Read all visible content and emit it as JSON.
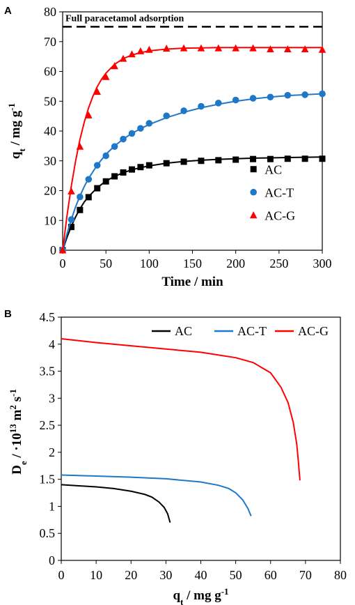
{
  "chart_data": [
    {
      "panel": "A",
      "type": "scatter",
      "xlabel": "Time / min",
      "ylabel": {
        "main": "q",
        "sub": "t",
        "rest": " / mg g",
        "sup": "-1"
      },
      "xlim": [
        0,
        300
      ],
      "ylim": [
        0,
        80
      ],
      "xticks": [
        "0",
        "50",
        "100",
        "150",
        "200",
        "250",
        "300"
      ],
      "yticks": [
        "0",
        "10",
        "20",
        "30",
        "40",
        "50",
        "60",
        "70",
        "80"
      ],
      "grid": false,
      "legend_position": "bottom-right",
      "reference_line": {
        "y": 75,
        "label": "Full paracetamol adsorption",
        "style": "dashed"
      },
      "series": [
        {
          "name": "AC",
          "color": "#000000",
          "marker": "square",
          "x": [
            0,
            10,
            20,
            30,
            40,
            50,
            60,
            70,
            80,
            90,
            100,
            120,
            140,
            160,
            180,
            200,
            220,
            240,
            260,
            280,
            300
          ],
          "y": [
            0,
            7.8,
            13.5,
            17.8,
            20.8,
            23.1,
            24.8,
            26.1,
            27.1,
            27.9,
            28.5,
            29.2,
            29.7,
            30.0,
            30.2,
            30.4,
            30.6,
            30.6,
            30.7,
            30.7,
            30.7
          ],
          "fit_x": [
            0,
            5,
            10,
            15,
            20,
            25,
            30,
            40,
            50,
            60,
            70,
            80,
            90,
            100,
            120,
            140,
            160,
            180,
            200,
            220,
            240,
            260,
            280,
            300
          ],
          "fit_y": [
            0,
            4.3,
            8.0,
            11.2,
            13.9,
            16.2,
            18.0,
            21.0,
            23.2,
            24.8,
            26.0,
            27.0,
            27.7,
            28.3,
            29.2,
            29.8,
            30.2,
            30.5,
            30.7,
            30.9,
            31.0,
            31.1,
            31.2,
            31.3
          ]
        },
        {
          "name": "AC-T",
          "color": "#1f77c8",
          "marker": "circle",
          "x": [
            0,
            10,
            20,
            30,
            40,
            50,
            60,
            70,
            80,
            90,
            100,
            120,
            140,
            160,
            180,
            200,
            220,
            240,
            260,
            280,
            300
          ],
          "y": [
            0,
            10.3,
            17.9,
            23.8,
            28.5,
            31.7,
            34.8,
            37.3,
            39.2,
            40.9,
            42.6,
            45.1,
            46.8,
            48.3,
            49.4,
            50.4,
            51.0,
            51.4,
            52.0,
            52.2,
            52.5
          ],
          "fit_x": [
            0,
            5,
            10,
            15,
            20,
            25,
            30,
            40,
            50,
            60,
            70,
            80,
            90,
            100,
            120,
            140,
            160,
            180,
            200,
            220,
            240,
            260,
            280,
            300
          ],
          "fit_y": [
            0,
            5.5,
            10.3,
            14.6,
            18.2,
            21.4,
            24.1,
            28.6,
            32.2,
            35.0,
            37.3,
            39.2,
            40.8,
            42.2,
            44.5,
            46.3,
            47.8,
            49.0,
            50.0,
            50.8,
            51.4,
            51.9,
            52.2,
            52.5
          ]
        },
        {
          "name": "AC-G",
          "color": "#ff0000",
          "marker": "triangle",
          "x": [
            0,
            10,
            20,
            30,
            40,
            50,
            60,
            70,
            80,
            90,
            100,
            120,
            140,
            160,
            180,
            200,
            220,
            240,
            260,
            280,
            300
          ],
          "y": [
            0,
            19.8,
            34.8,
            45.3,
            53.2,
            58.2,
            61.8,
            64.3,
            65.8,
            66.8,
            67.3,
            67.7,
            67.8,
            67.8,
            67.8,
            67.8,
            67.8,
            67.5,
            67.5,
            67.5,
            67.3
          ],
          "fit_x": [
            0,
            5,
            10,
            15,
            20,
            25,
            30,
            35,
            40,
            45,
            50,
            60,
            70,
            80,
            90,
            100,
            120,
            140,
            160,
            180,
            200,
            250,
            300
          ],
          "fit_y": [
            0,
            11.5,
            21.5,
            30.0,
            37.2,
            43.0,
            47.8,
            51.7,
            54.9,
            57.4,
            59.4,
            62.4,
            64.3,
            65.5,
            66.3,
            66.9,
            67.5,
            67.8,
            67.9,
            68.0,
            68.0,
            68.0,
            68.0
          ]
        }
      ]
    },
    {
      "panel": "B",
      "type": "line",
      "xlabel": {
        "main": "q",
        "sub": "t",
        "rest": " / mg g",
        "sup": "-1"
      },
      "ylabel": {
        "main": "D",
        "sub": "e",
        "rest1": " / ·10",
        "sup1": "13",
        "rest2": " m",
        "sup2": "2",
        "rest3": " s",
        "sup3": "-1"
      },
      "xlim": [
        0,
        80
      ],
      "ylim": [
        0,
        4.5
      ],
      "xticks": [
        "0",
        "10",
        "20",
        "30",
        "40",
        "50",
        "60",
        "70",
        "80"
      ],
      "yticks": [
        "0",
        "0.5",
        "1",
        "1.5",
        "2",
        "2.5",
        "3",
        "3.5",
        "4",
        "4.5"
      ],
      "grid": false,
      "legend_position": "top-right",
      "series": [
        {
          "name": "AC",
          "color": "#000000",
          "x": [
            0,
            5,
            10,
            15,
            20,
            24,
            26,
            28,
            29.5,
            30.5,
            31.2
          ],
          "y": [
            1.4,
            1.38,
            1.36,
            1.33,
            1.28,
            1.22,
            1.17,
            1.08,
            0.98,
            0.86,
            0.7
          ]
        },
        {
          "name": "AC-T",
          "color": "#1f77c8",
          "x": [
            0,
            10,
            20,
            30,
            40,
            45,
            48,
            50,
            52,
            53.5,
            54.4
          ],
          "y": [
            1.58,
            1.56,
            1.54,
            1.51,
            1.45,
            1.39,
            1.33,
            1.25,
            1.12,
            0.96,
            0.82
          ]
        },
        {
          "name": "AC-G",
          "color": "#ff0000",
          "x": [
            0,
            10,
            20,
            30,
            40,
            50,
            55,
            60,
            63,
            65,
            66.5,
            67.5,
            68.0,
            68.4
          ],
          "y": [
            4.1,
            4.03,
            3.97,
            3.91,
            3.85,
            3.75,
            3.66,
            3.47,
            3.2,
            2.92,
            2.55,
            2.15,
            1.8,
            1.48
          ]
        }
      ]
    }
  ]
}
